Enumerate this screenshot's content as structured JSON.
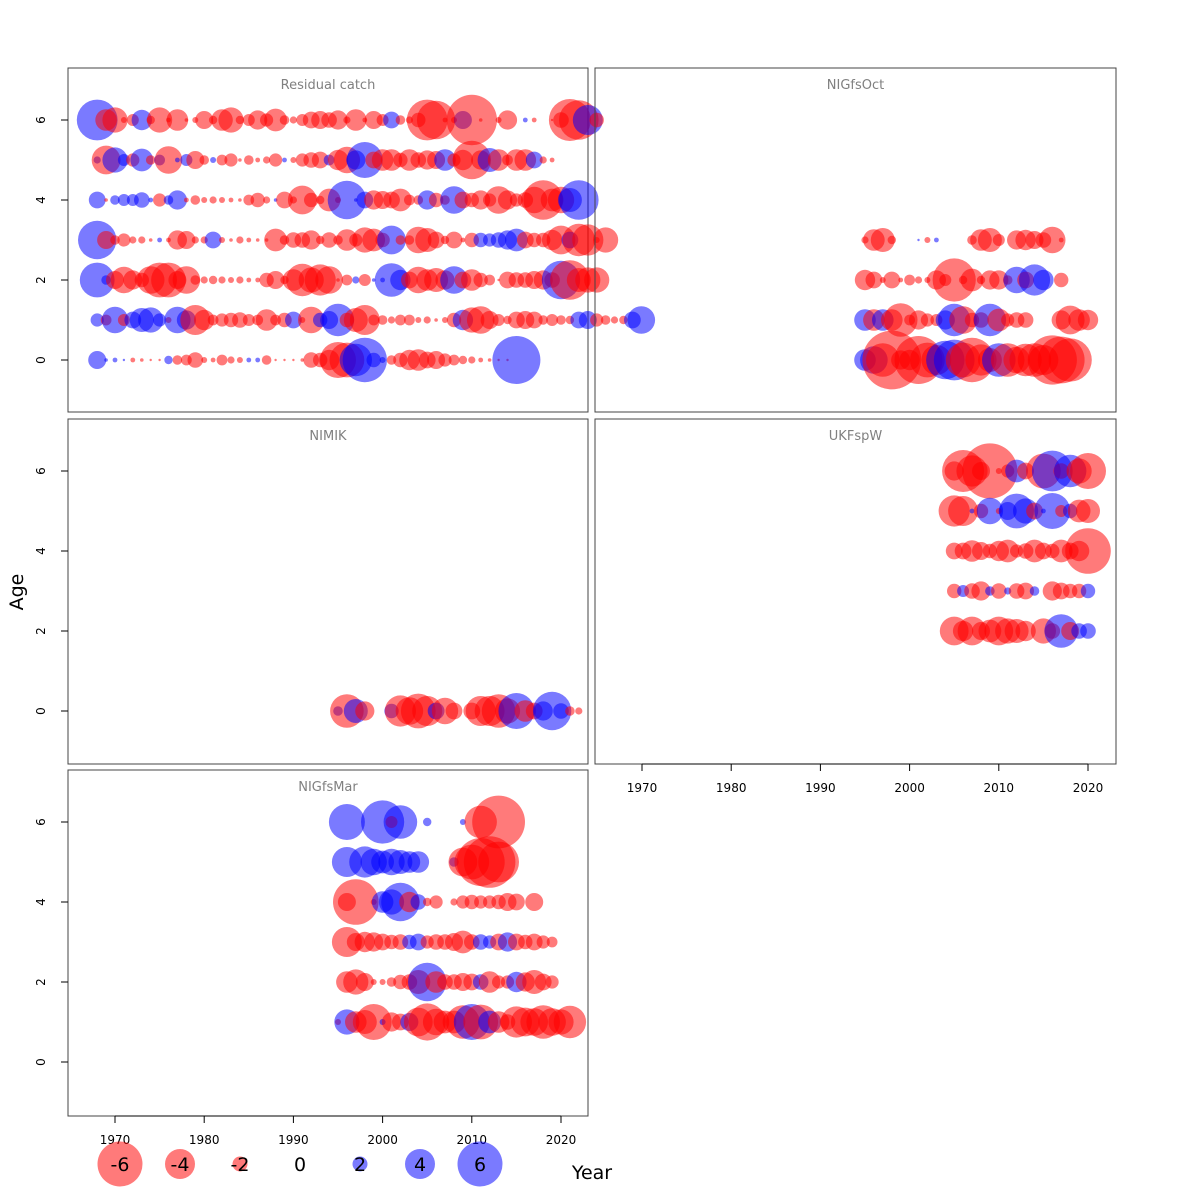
{
  "chart_data": {
    "type": "scatter",
    "subtype": "bubble-residual-grid",
    "xlabel": "Year",
    "ylabel": "Age",
    "xlim": [
      1965,
      2023
    ],
    "ylim": [
      -1.3,
      7.3
    ],
    "x_ticks": [
      1970,
      1980,
      1990,
      2000,
      2010,
      2020
    ],
    "y_ticks": [
      0,
      2,
      4,
      6
    ],
    "colors": {
      "negative": "#ff0000",
      "positive": "#0000ff",
      "panel_title": "#808080"
    },
    "bubble_scale_note": "bubble size proportional to |residual|; red = negative, blue = positive",
    "legend": {
      "labels": [
        "-6",
        "-4",
        "-2",
        "0",
        "2",
        "4",
        "6"
      ],
      "values": [
        -6,
        -4,
        -2,
        0,
        2,
        4,
        6
      ]
    },
    "panels": [
      {
        "title": "Residual catch",
        "rows": [
          {
            "age": 6,
            "start": 1968,
            "residuals": [
              3.4,
              -1.8,
              -2.1,
              -0.5,
              -1,
              1.7,
              -0.7,
              -2.1,
              -0.4,
              -1.8,
              -0.3,
              -0.5,
              -1.5,
              -0.7,
              -1.8,
              -2.1,
              -0.7,
              -1,
              -1.6,
              -1.1,
              -1.9,
              -0.8,
              -0.6,
              -1,
              -1.4,
              -1.5,
              -1.3,
              -1.6,
              -0.6,
              -1.8,
              -0.4,
              -1.5,
              -1,
              1.4,
              -0.8,
              -0.6,
              -1.2,
              -3.4,
              -3.2,
              -0.4,
              -0.5,
              1.5,
              -4.2,
              -0.3,
              0,
              -0.5,
              -1.6,
              0,
              0.4,
              -0.4,
              0,
              -0.2,
              -1.3,
              -3.5,
              -3.3,
              2.5,
              -1.2
            ]
          },
          {
            "age": 5,
            "start": 1968,
            "residuals": [
              0.6,
              -2.4,
              2.1,
              1,
              -1.1,
              1.9,
              -0.8,
              0.9,
              -2.3,
              0.4,
              1,
              -1.5,
              -0.8,
              0.5,
              -0.9,
              -1.1,
              -0.3,
              -0.8,
              -0.4,
              -0.6,
              -1.1,
              0.4,
              -0.5,
              -1.1,
              -1.3,
              -1.4,
              0.9,
              -1.7,
              -2.2,
              1.6,
              3,
              -1.4,
              -1.8,
              -1.8,
              -1.2,
              -1.8,
              -1.3,
              -1.6,
              -1.5,
              1.8,
              -1.1,
              -1.7,
              -3.2,
              -1.6,
              2,
              -1.8,
              -0.9,
              -1.8,
              -1.8,
              1.4,
              -0.6,
              -0.4
            ]
          },
          {
            "age": 4,
            "start": 1968,
            "residuals": [
              1.4,
              -0.3,
              0.8,
              1,
              1,
              1.3,
              0.4,
              -1.1,
              0.8,
              1.6,
              -0.4,
              -0.8,
              -0.5,
              -0.6,
              -0.5,
              -0.4,
              -0.3,
              -0.9,
              -1.2,
              -0.6,
              0.3,
              -1.4,
              -0.6,
              -2.4,
              -1.2,
              -0.7,
              -1.9,
              -0.5,
              3.2,
              0.3,
              1.4,
              -1.6,
              -1.5,
              -1.4,
              -1.9,
              -0.9,
              -0.8,
              1.6,
              -1.2,
              -0.8,
              2.3,
              -1.4,
              -1.2,
              -1.6,
              -1.1,
              -2.3,
              -1.6,
              -1.1,
              -1.3,
              -2.2,
              -3.3,
              -1.9,
              -2.2,
              2,
              3.3
            ]
          },
          {
            "age": 3,
            "start": 1968,
            "residuals": [
              3.2,
              -1.5,
              -0.8,
              -1.1,
              -0.6,
              -0.6,
              -0.3,
              0.4,
              -0.4,
              -1.6,
              -1.5,
              -0.6,
              -0.6,
              1.4,
              -0.5,
              -0.3,
              -0.6,
              -0.4,
              -0.3,
              -0.3,
              -1.9,
              -0.8,
              -1.3,
              -1.3,
              -1.6,
              -0.7,
              -1.3,
              -0.8,
              -1.8,
              -1.1,
              -2.1,
              -1.9,
              -1.2,
              2.4,
              -0.8,
              -0.8,
              -2.2,
              -2,
              -1.4,
              -0.7,
              -1.4,
              -0.4,
              -1.2,
              1.2,
              1.1,
              1.3,
              1.6,
              1.9,
              -1.4,
              -1.2,
              -1.2,
              -1.7,
              -2.4,
              1.4,
              -2.7,
              -2.6,
              -0.5,
              -2.1
            ]
          },
          {
            "age": 2,
            "start": 1968,
            "residuals": [
              2.9,
              0.8,
              -1.5,
              -2.2,
              -1.6,
              -1.2,
              -2.3,
              -2.9,
              -2.9,
              -1.5,
              -2.3,
              -0.8,
              -0.6,
              -0.7,
              -0.6,
              -0.5,
              -0.6,
              -0.4,
              -0.4,
              -1.2,
              -1.5,
              -0.7,
              -1.8,
              -2.7,
              -2.1,
              -2.6,
              -2.3,
              -0.3,
              -0.9,
              0.6,
              -1,
              0.3,
              0.4,
              2.8,
              1.7,
              -1.4,
              -2.2,
              -1.8,
              -2,
              -1.6,
              2.3,
              -1.4,
              -1.8,
              -1.2,
              -0.9,
              -0.2,
              -1.4,
              -1.3,
              -1.3,
              -1.5,
              -1.6,
              -1.3,
              3.2,
              -3.3,
              -2,
              -2.1,
              -2.1
            ]
          },
          {
            "age": 1,
            "start": 1968,
            "residuals": [
              1.1,
              -0.9,
              2.2,
              -1,
              1.4,
              2,
              2.1,
              1.1,
              -0.5,
              2.2,
              1.6,
              -2.5,
              -1.7,
              -0.9,
              -1.1,
              -1.2,
              -1.3,
              -1,
              -0.9,
              -1.8,
              -0.9,
              -1.2,
              1.4,
              -0.5,
              -2.2,
              1.2,
              1.5,
              2.7,
              -1.2,
              -2,
              -2.5,
              -0.9,
              -0.8,
              -0.6,
              -0.9,
              -0.9,
              -0.5,
              -0.6,
              -0.3,
              -0.5,
              -1.2,
              1.7,
              -2.1,
              -2.3,
              -1.5,
              -1,
              -0.7,
              -1.4,
              -1.5,
              -1.4,
              -0.8,
              -1,
              -0.8,
              -0.7,
              1.4,
              1.5,
              -1.1,
              -0.8,
              -0.6,
              -0.7,
              1.4,
              2.3
            ]
          },
          {
            "age": 0,
            "start": 1968,
            "residuals": [
              1.5,
              0.3,
              0.4,
              0.2,
              -0.4,
              -0.3,
              -0.2,
              -0.2,
              0.7,
              -0.8,
              -0.9,
              -1.3,
              -0.5,
              -0.4,
              -0.9,
              -0.6,
              -0.5,
              0.4,
              0.4,
              -0.8,
              -0.2,
              -0.2,
              -0.2,
              -0.3,
              -1.3,
              -1.2,
              -1.7,
              -3,
              -2.9,
              2.7,
              3.7,
              1.2,
              0.5,
              -0.8,
              -1.2,
              -1.7,
              -1.8,
              -1.4,
              -1.5,
              -1.1,
              -0.9,
              -0.7,
              -0.6,
              -0.4,
              -0.3,
              -0.2,
              -0.2,
              4
            ]
          }
        ]
      },
      {
        "title": "NIGfsOct",
        "rows": [
          {
            "age": 3,
            "start": 1995,
            "residuals": [
              -0.6,
              -1.8,
              -2,
              -0.7,
              0,
              0,
              0.2,
              -0.5,
              0.4,
              0,
              0,
              0,
              -0.8,
              -1.8,
              -2,
              -1,
              0,
              -1.6,
              -1.7,
              -1.5,
              -1.3,
              -2.2,
              -0.4
            ]
          },
          {
            "age": 2,
            "start": 1995,
            "residuals": [
              -1.7,
              -1.4,
              -0.5,
              -1.4,
              -0.4,
              -0.9,
              -0.6,
              -0.5,
              -1.6,
              -1,
              -3.6,
              -0.7,
              -1.9,
              -0.7,
              -1.6,
              -1.6,
              -0.8,
              2.2,
              -1.4,
              2.6,
              1.7,
              0,
              -1.2
            ]
          },
          {
            "age": 1,
            "start": 1995,
            "residuals": [
              1.8,
              -1.8,
              1.8,
              -1.8,
              -2.8,
              -0.9,
              -1.6,
              -1.1,
              -1,
              1.6,
              2.7,
              -2.3,
              -1.2,
              -1.3,
              2.7,
              -1.9,
              -1.1,
              -1.3,
              -1.3,
              0,
              0,
              0,
              -1.6,
              -2.4,
              -1.8,
              -1.7
            ]
          },
          {
            "age": 0,
            "start": 1995,
            "residuals": [
              1.8,
              2.3,
              -2.8,
              -4.9,
              -1.6,
              -1.7,
              -4,
              -2.9,
              -2.5,
              3.2,
              3.4,
              -2.9,
              -3.7,
              -2.6,
              -2,
              2.8,
              -2.8,
              -2.2,
              -2.7,
              -2.8,
              -2.5,
              -4.1,
              -3.9,
              -3.6
            ]
          }
        ]
      },
      {
        "title": "NIMIK",
        "rows": [
          {
            "age": 0,
            "start": 1995,
            "residuals": [
              0.8,
              -2.8,
              2,
              -1.6,
              0,
              0,
              1.2,
              -2.6,
              -2.3,
              -2.9,
              -2.5,
              1.4,
              -2.2,
              -1.4,
              0,
              -1.4,
              -2.5,
              -2.5,
              -2.8,
              -2.1,
              3,
              -1.8,
              -1.4,
              1.6,
              3.2,
              1.3,
              -0.8,
              -0.6
            ]
          }
        ]
      },
      {
        "title": "UKFspW",
        "rows": [
          {
            "age": 6,
            "start": 2005,
            "residuals": [
              -1.6,
              -3.5,
              -2.6,
              -1.5,
              -4.6,
              -0.5,
              -1.1,
              1.9,
              -1.4,
              0,
              -2.9,
              3.4,
              -1.3,
              2.7,
              -2.1,
              -3
            ]
          },
          {
            "age": 5,
            "start": 2005,
            "residuals": [
              -2.6,
              -2.5,
              0.4,
              -1.2,
              2.2,
              -0.5,
              1.5,
              2.9,
              2.1,
              -1.4,
              0.4,
              3,
              -1,
              1.2,
              -1.9,
              -2
            ]
          },
          {
            "age": 4,
            "start": 2005,
            "residuals": [
              -1.4,
              -1.4,
              -1.8,
              -1.5,
              -1.2,
              -1.7,
              -1.9,
              -1.1,
              -1.3,
              -1.9,
              -1.4,
              -1.2,
              -1.9,
              -1.4,
              -1.7,
              -3.8
            ]
          },
          {
            "age": 3,
            "start": 2005,
            "residuals": [
              -1.2,
              1,
              -1.3,
              -1.6,
              0.8,
              -1.3,
              0.6,
              -1.3,
              -1.4,
              0.8,
              0,
              -1.6,
              -1.4,
              -1.2,
              -1.2,
              1.2
            ]
          },
          {
            "age": 2,
            "start": 2005,
            "residuals": [
              -2.4,
              -1.7,
              -2.4,
              -1.5,
              -1.9,
              -2.4,
              -2.1,
              -2,
              -1.7,
              0,
              -2.1,
              -1.3,
              2.8,
              -1.5,
              1.3,
              1.3
            ]
          }
        ]
      },
      {
        "title": "NIGfsMar",
        "rows": [
          {
            "age": 6,
            "start": 1996,
            "residuals": [
              3,
              0,
              0,
              0,
              3.6,
              -1,
              2.8,
              0,
              0,
              0.7,
              0,
              0,
              0,
              0.5,
              0,
              -2.7,
              0,
              -4.4
            ]
          },
          {
            "age": 5,
            "start": 1996,
            "residuals": [
              2.5,
              0,
              2.6,
              2.2,
              1.9,
              2.2,
              2,
              1.8,
              1.8,
              0,
              0,
              0,
              0.8,
              -2.4,
              -2.9,
              -4,
              -4.3,
              -3.4
            ]
          },
          {
            "age": 4,
            "start": 1996,
            "residuals": [
              -1.5,
              -3.8,
              0,
              -0.5,
              1.8,
              2.1,
              3.2,
              -1.7,
              1.3,
              -0.7,
              -1.1,
              0,
              -0.6,
              -1.1,
              -1.2,
              -1.1,
              -1.1,
              -1.2,
              -1.5,
              -1.4,
              0,
              -1.5
            ]
          },
          {
            "age": 3,
            "start": 1996,
            "residuals": [
              -2.5,
              -1.5,
              -1.7,
              -1.6,
              -1.4,
              -1.2,
              -1.3,
              1.2,
              1.4,
              -1.1,
              -1.3,
              -1.3,
              -1.5,
              -1.9,
              -1.3,
              1.3,
              1.1,
              -1.4,
              1.6,
              -1.4,
              -1.2,
              -1.4,
              -1.1,
              -0.9
            ]
          },
          {
            "age": 2,
            "start": 1996,
            "residuals": [
              -1.8,
              -2.1,
              -1.5,
              -0.5,
              -0.5,
              -0.8,
              -1.2,
              -1.3,
              -2,
              3.2,
              -1.8,
              -1.3,
              -1.3,
              -1.5,
              -1.4,
              1.3,
              -1.8,
              -1.1,
              -1.1,
              1.7,
              -1.6,
              -2,
              -1.4,
              -1.1
            ]
          },
          {
            "age": 1,
            "start": 1995,
            "residuals": [
              -0.5,
              2.1,
              -1.8,
              -2,
              -3,
              0.5,
              -1.6,
              -1.4,
              1.5,
              -2.4,
              -3.1,
              -2.2,
              -1.9,
              -1.9,
              -2.8,
              3,
              -2.9,
              1.9,
              -1.8,
              -1.3,
              -2.6,
              -2.4,
              -2.3,
              -2.8,
              -2.3,
              -2.1,
              -2.7
            ]
          }
        ]
      }
    ]
  }
}
